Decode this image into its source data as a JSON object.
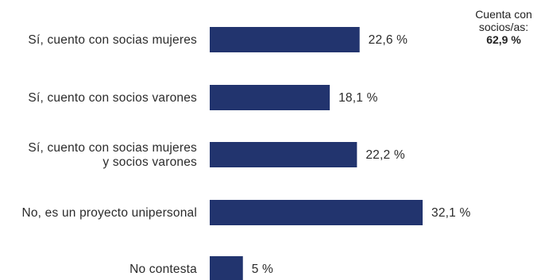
{
  "chart_data": {
    "type": "bar",
    "orientation": "horizontal",
    "categories": [
      [
        "Sí, cuento con socias mujeres"
      ],
      [
        "Sí, cuento con socios varones"
      ],
      [
        "Sí, cuento con socias mujeres",
        "y socios varones"
      ],
      [
        "No, es un proyecto unipersonal"
      ],
      [
        "No contesta"
      ]
    ],
    "values": [
      22.6,
      18.1,
      22.2,
      32.1,
      5
    ],
    "value_labels": [
      "22,6 %",
      "18,1 %",
      "22,2 %",
      "32,1 %",
      "5 %"
    ],
    "unit": "%",
    "xlim": [
      0,
      32.1
    ],
    "grid": false,
    "legend": "none",
    "bar_color": "#22346e",
    "note": {
      "text": "Cuenta con socios/as:",
      "value": "62,9 %"
    }
  }
}
